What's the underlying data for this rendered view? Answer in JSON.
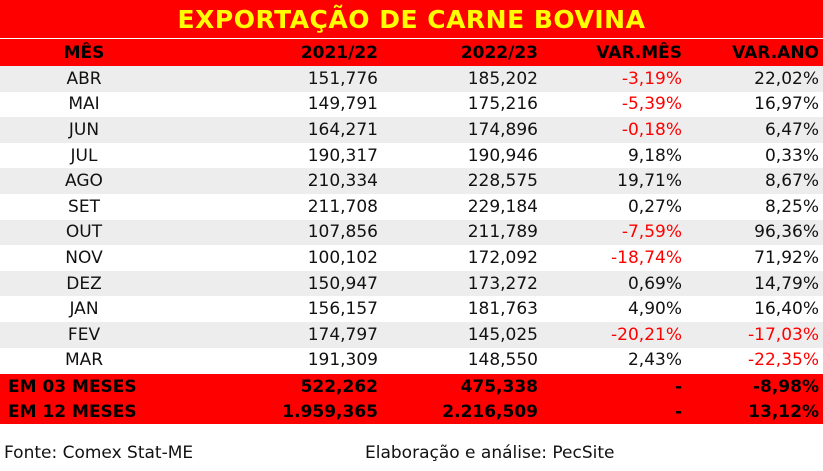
{
  "title": "EXPORTAÇÃO DE CARNE BOVINA",
  "colors": {
    "header_bg": "#ff0000",
    "title_text": "#ffff00",
    "negative": "#ff0000",
    "stripe": "#ededed"
  },
  "headers": [
    "MÊS",
    "2021/22",
    "2022/23",
    "VAR.MÊS",
    "VAR.ANO"
  ],
  "rows": [
    [
      "ABR",
      "151,776",
      "185,202",
      "-3,19%",
      "22,02%"
    ],
    [
      "MAI",
      "149,791",
      "175,216",
      "-5,39%",
      "16,97%"
    ],
    [
      "JUN",
      "164,271",
      "174,896",
      "-0,18%",
      "6,47%"
    ],
    [
      "JUL",
      "190,317",
      "190,946",
      "9,18%",
      "0,33%"
    ],
    [
      "AGO",
      "210,334",
      "228,575",
      "19,71%",
      "8,67%"
    ],
    [
      "SET",
      "211,708",
      "229,184",
      "0,27%",
      "8,25%"
    ],
    [
      "OUT",
      "107,856",
      "211,789",
      "-7,59%",
      "96,36%"
    ],
    [
      "NOV",
      "100,102",
      "172,092",
      "-18,74%",
      "71,92%"
    ],
    [
      "DEZ",
      "150,947",
      "173,272",
      "0,69%",
      "14,79%"
    ],
    [
      "JAN",
      "156,157",
      "181,763",
      "4,90%",
      "16,40%"
    ],
    [
      "FEV",
      "174,797",
      "145,025",
      "-20,21%",
      "-17,03%"
    ],
    [
      "MAR",
      "191,309",
      "148,550",
      "2,43%",
      "-22,35%"
    ]
  ],
  "summary": [
    [
      "EM 03 MESES",
      "522,262",
      "475,338",
      "-",
      "-8,98%"
    ],
    [
      "EM 12 MESES",
      "1.959,365",
      "2.216,509",
      "-",
      "13,12%"
    ]
  ],
  "footer": {
    "source": "Fonte: Comex Stat-ME",
    "credit": "Elaboração e análise: PecSite"
  }
}
